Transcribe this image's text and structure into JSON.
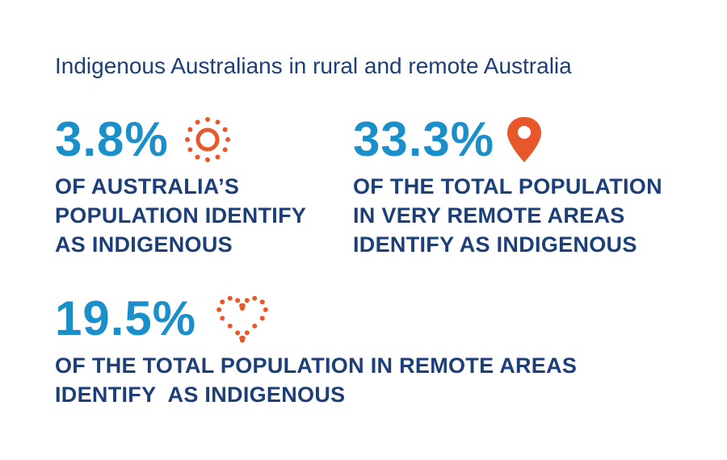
{
  "title": "Indigenous Australians in rural and remote Australia",
  "colors": {
    "number": "#1b8fca",
    "text": "#1d3f77",
    "icon": "#e8572a"
  },
  "stats": [
    {
      "value": "3.8%",
      "icon": "sun-icon",
      "lines": [
        "OF AUSTRALIA’S",
        "POPULATION IDENTIFY",
        "AS INDIGENOUS"
      ]
    },
    {
      "value": "33.3%",
      "icon": "map-pin-icon",
      "lines": [
        "OF THE TOTAL POPULATION",
        "IN VERY REMOTE AREAS",
        "IDENTIFY AS INDIGENOUS"
      ]
    },
    {
      "value": "19.5%",
      "icon": "dotted-heart-icon",
      "lines": [
        "OF THE TOTAL POPULATION IN REMOTE AREAS",
        "IDENTIFY  AS INDIGENOUS"
      ]
    }
  ]
}
